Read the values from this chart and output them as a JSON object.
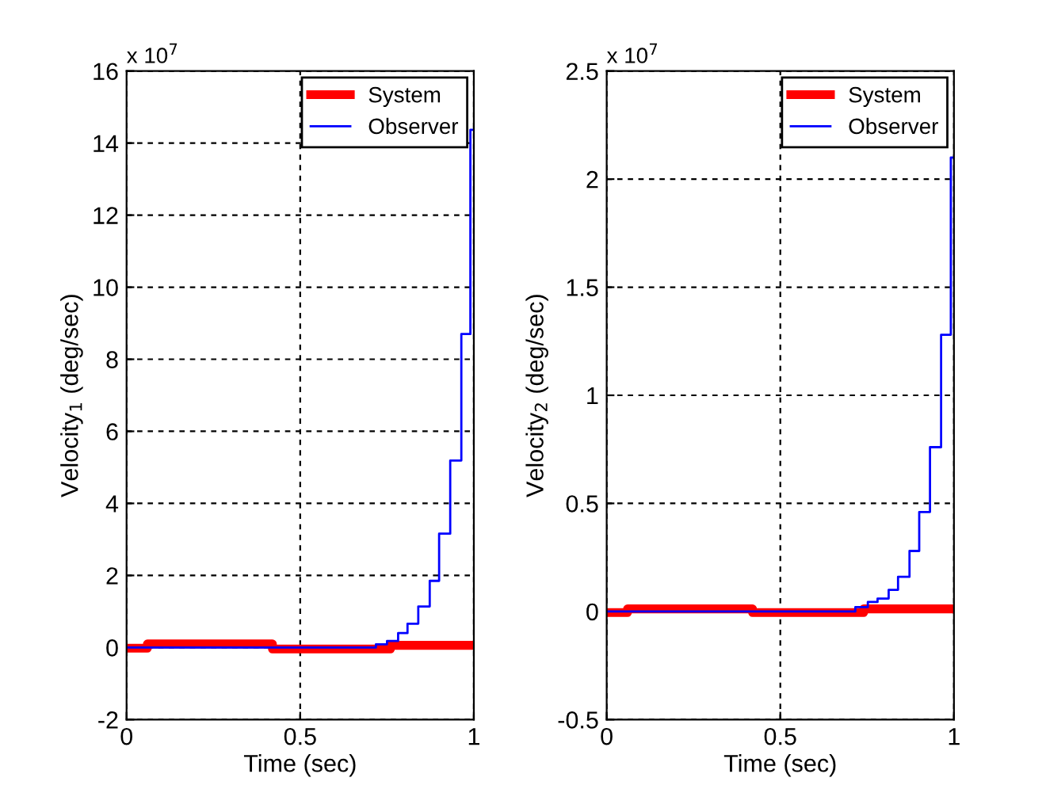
{
  "chart_data": [
    {
      "type": "step",
      "xlabel": "Time (sec)",
      "ylabel": "Velocity$_{1}$ (deg/sec)",
      "annotations": [
        "x 10$^{7}$"
      ],
      "xlim": [
        0,
        1
      ],
      "xticks": [
        0,
        0.5,
        1
      ],
      "ylim": [
        -2,
        16
      ],
      "yticks": [
        -2,
        0,
        2,
        4,
        6,
        8,
        10,
        12,
        14,
        16
      ],
      "grid": true,
      "legend": "top right",
      "series": [
        {
          "name": "System",
          "color": "#ff0000",
          "x": [
            0,
            0.06,
            0.42,
            0.76,
            0.99
          ],
          "values": [
            -0.02,
            0.1,
            -0.04,
            0.06,
            0.06
          ]
        },
        {
          "name": "Observer",
          "color": "#0000ff",
          "x": [
            0,
            0.718,
            0.75,
            0.782,
            0.809,
            0.84,
            0.873,
            0.9,
            0.932,
            0.964,
            0.99,
            0.995
          ],
          "values": [
            0,
            0.09,
            0.18,
            0.4,
            0.66,
            1.14,
            1.85,
            3.16,
            5.19,
            8.7,
            14.37,
            14.37
          ]
        }
      ]
    },
    {
      "type": "step",
      "xlabel": "Time (sec)",
      "ylabel": "Velocity$_{2}$ (deg/sec)",
      "annotations": [
        "x 10$^{7}$"
      ],
      "xlim": [
        0,
        1
      ],
      "xticks": [
        0,
        0.5,
        1
      ],
      "ylim": [
        -0.5,
        2.5
      ],
      "yticks": [
        -0.5,
        0,
        0.5,
        1,
        1.5,
        2,
        2.5
      ],
      "grid": true,
      "legend": "top right",
      "series": [
        {
          "name": "System",
          "color": "#ff0000",
          "x": [
            0,
            0.06,
            0.42,
            0.74,
            0.99
          ],
          "values": [
            -0.005,
            0.012,
            -0.005,
            0.012,
            0.012
          ]
        },
        {
          "name": "Observer",
          "color": "#0000ff",
          "x": [
            0,
            0.716,
            0.752,
            0.78,
            0.812,
            0.839,
            0.872,
            0.9,
            0.931,
            0.963,
            0.991,
            0.995
          ],
          "values": [
            0,
            0.02,
            0.044,
            0.06,
            0.1,
            0.16,
            0.28,
            0.46,
            0.76,
            1.28,
            2.1,
            2.1
          ]
        }
      ]
    }
  ]
}
